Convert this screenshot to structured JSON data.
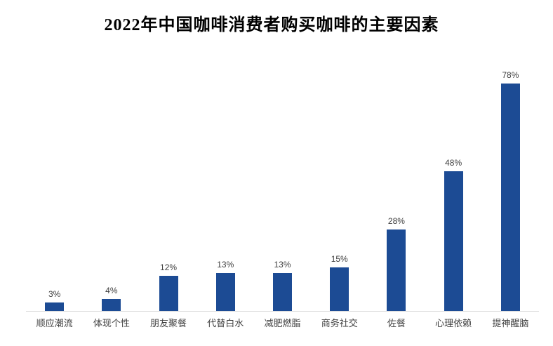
{
  "page": {
    "background": "#ffffff"
  },
  "chart_data": {
    "type": "bar",
    "title": "2022年中国咖啡消费者购买咖啡的主要因素",
    "categories": [
      "顺应潮流",
      "体现个性",
      "朋友聚餐",
      "代替白水",
      "减肥燃脂",
      "商务社交",
      "佐餐",
      "心理依赖",
      "提神醒脑"
    ],
    "values": [
      3,
      4,
      12,
      13,
      13,
      15,
      28,
      48,
      78
    ],
    "value_labels": [
      "3%",
      "4%",
      "12%",
      "13%",
      "13%",
      "15%",
      "28%",
      "48%",
      "78%"
    ],
    "xlabel": "",
    "ylabel": "",
    "ylim": [
      0,
      85
    ],
    "grid": false,
    "legend": false,
    "bar_color": "#1C4B94",
    "axis_line_color": "#D9D9D9",
    "value_label_color": "#404040",
    "category_label_color": "#404040",
    "title_color": "#000000"
  }
}
